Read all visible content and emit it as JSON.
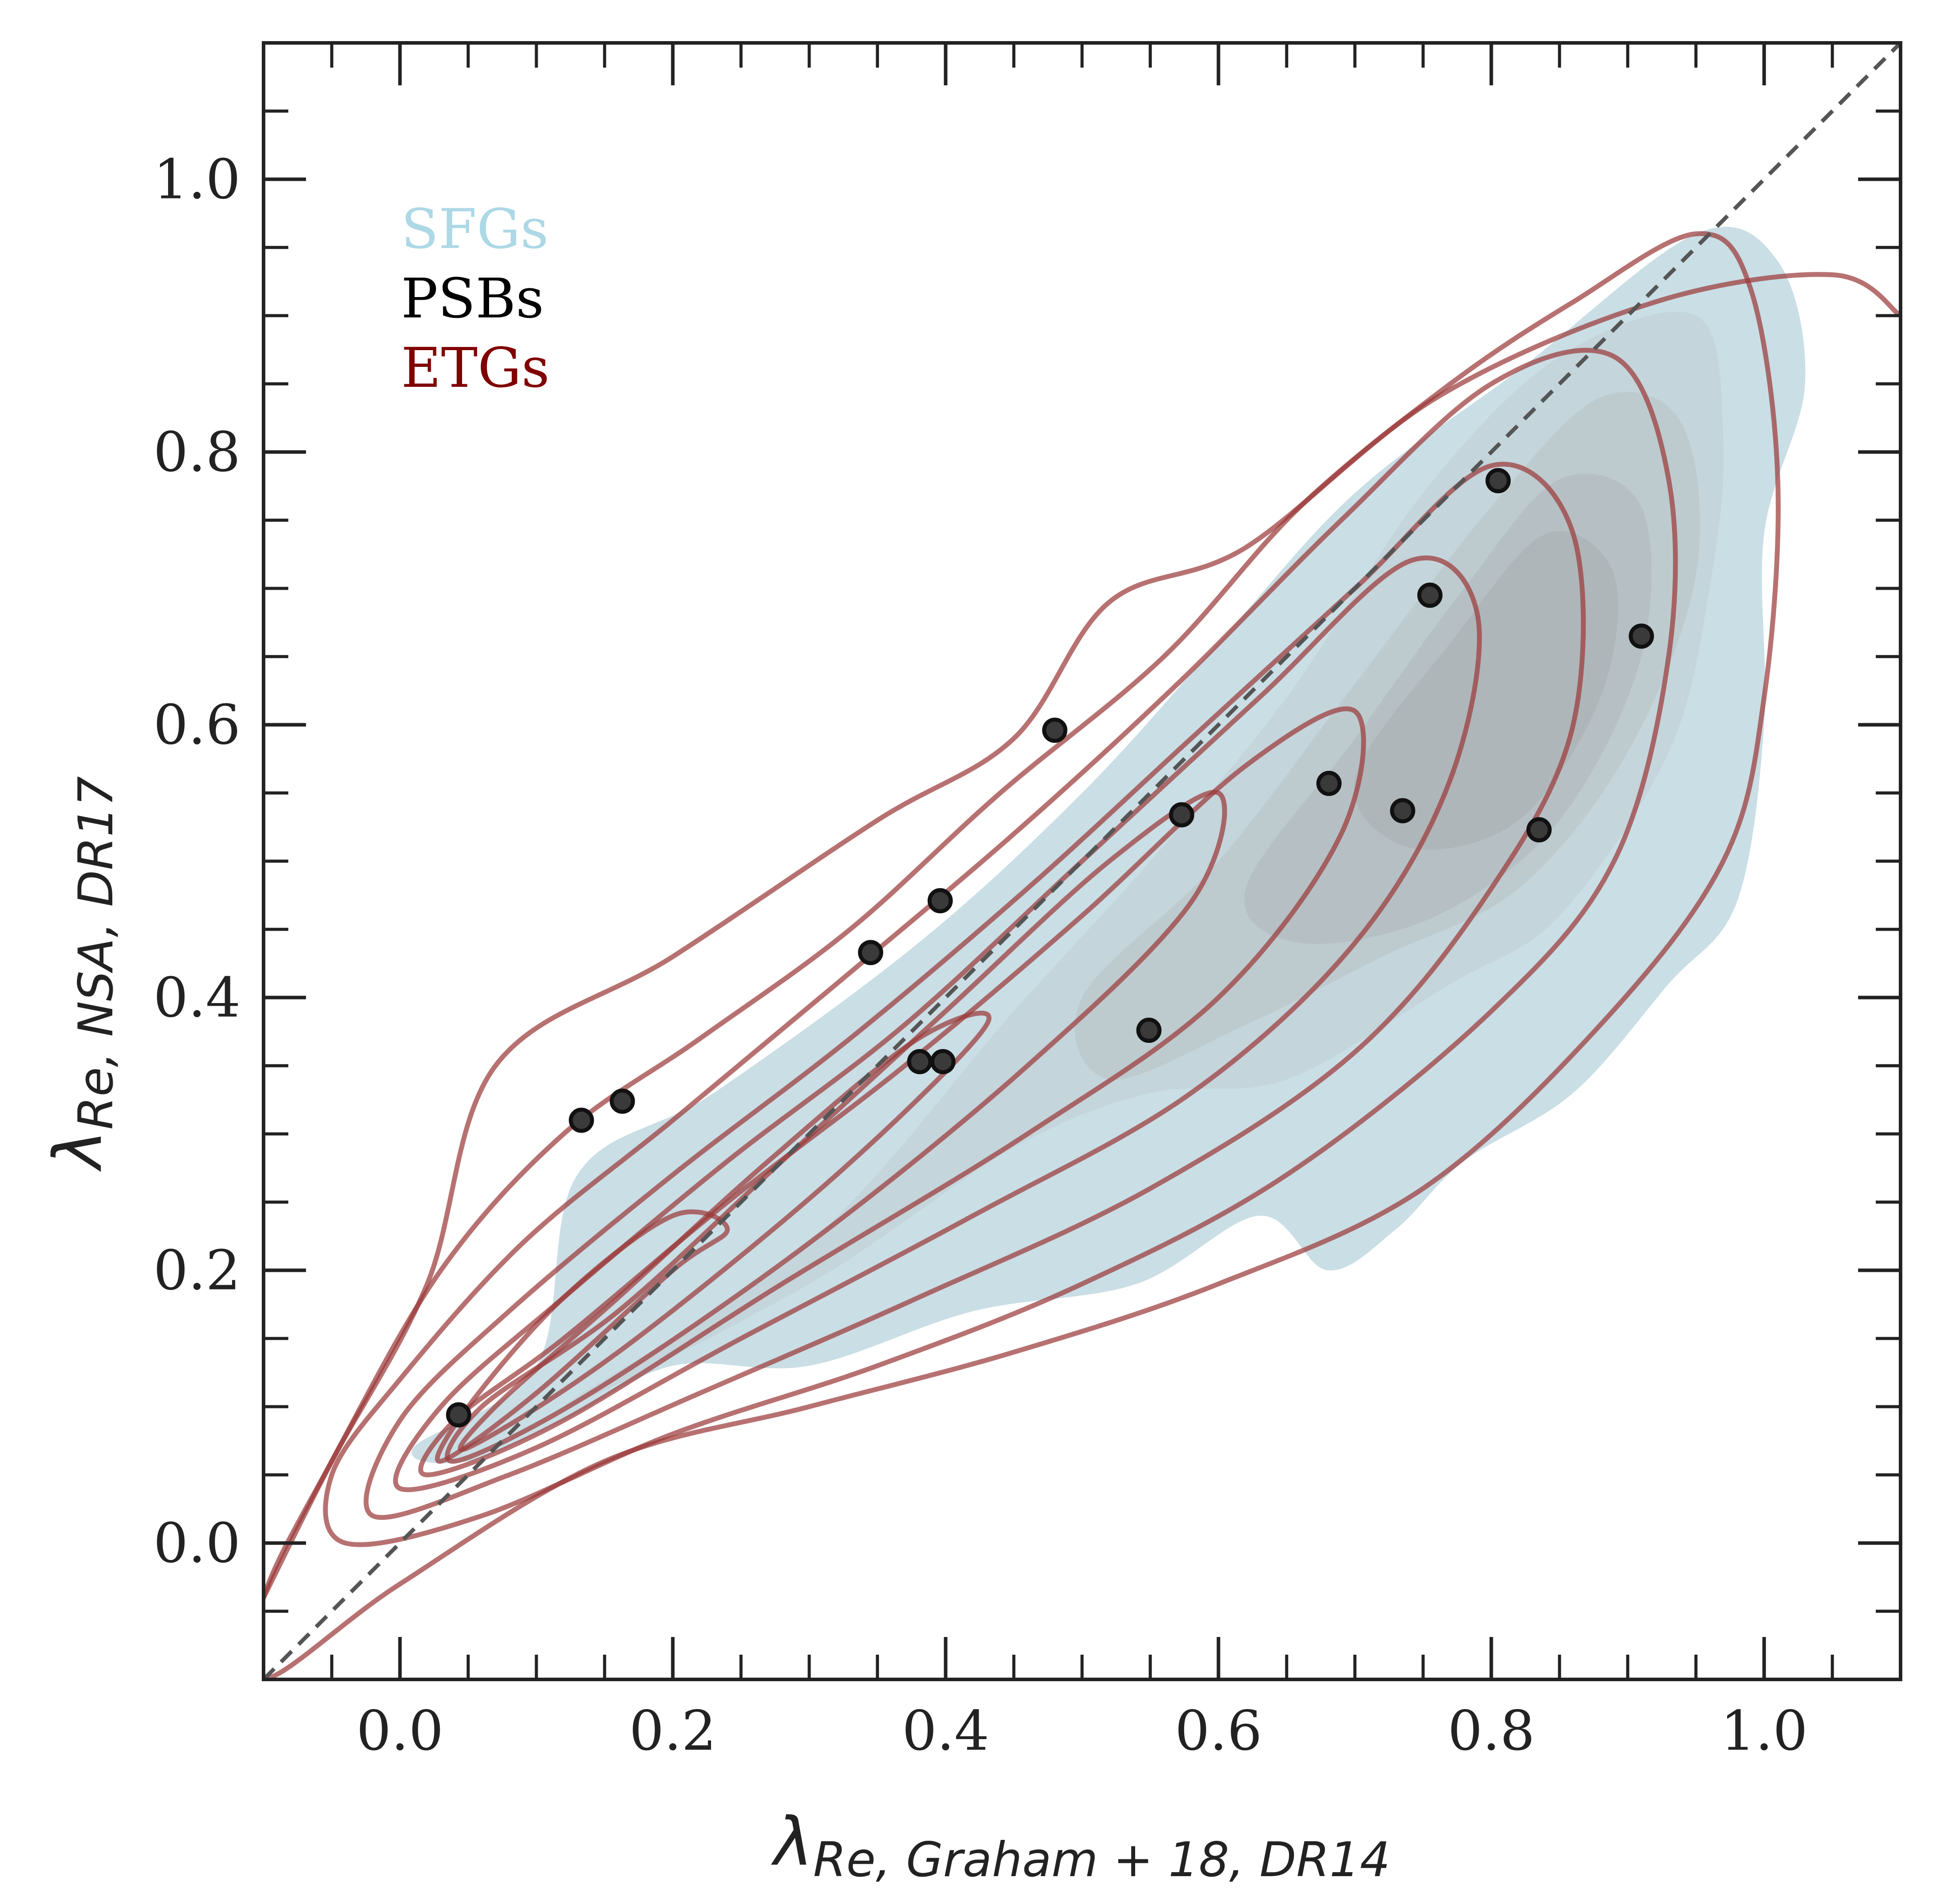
{
  "chart_data": {
    "type": "scatter",
    "title": "",
    "xlabel": "λRe, Graham + 18, DR14",
    "ylabel": "λRe, NSA, DR17",
    "xlabel_main": "λ",
    "xlabel_sub": "Re, Graham + 18, DR14",
    "ylabel_main": "λ",
    "ylabel_sub": "Re, NSA, DR17",
    "xlim": [
      -0.1,
      1.1
    ],
    "ylim": [
      -0.1,
      1.1
    ],
    "x_ticks": [
      0.0,
      0.2,
      0.4,
      0.6,
      0.8,
      1.0
    ],
    "y_ticks": [
      0.0,
      0.2,
      0.4,
      0.6,
      0.8,
      1.0
    ],
    "x_tick_labels": [
      "0.0",
      "0.2",
      "0.4",
      "0.6",
      "0.8",
      "1.0"
    ],
    "y_tick_labels": [
      "0.0",
      "0.2",
      "0.4",
      "0.6",
      "0.8",
      "1.0"
    ],
    "grid": false,
    "legend_position": "top-left",
    "legend": [
      {
        "name": "SFGs",
        "color": "#add8e6"
      },
      {
        "name": "PSBs",
        "color": "#000000"
      },
      {
        "name": "ETGs",
        "color": "#800000"
      }
    ],
    "reference_line": {
      "type": "one-to-one",
      "x": [
        -0.1,
        1.1
      ],
      "y": [
        -0.1,
        1.1
      ],
      "style": "dashed",
      "color": "#555555"
    },
    "series": [
      {
        "name": "PSBs",
        "kind": "points",
        "color": "#2b2b2b",
        "x": [
          0.043,
          0.133,
          0.163,
          0.345,
          0.381,
          0.398,
          0.396,
          0.48,
          0.549,
          0.573,
          0.681,
          0.735,
          0.755,
          0.805,
          0.835,
          0.91
        ],
        "y": [
          0.094,
          0.31,
          0.324,
          0.433,
          0.353,
          0.353,
          0.471,
          0.596,
          0.376,
          0.534,
          0.557,
          0.537,
          0.695,
          0.779,
          0.523,
          0.665
        ]
      },
      {
        "name": "SFGs",
        "kind": "filled density contours",
        "color": "#add8e6",
        "levels": [
          [
            [
              0.01,
              0.07
            ],
            [
              0.1,
              0.13
            ],
            [
              0.13,
              0.27
            ],
            [
              0.23,
              0.33
            ],
            [
              0.38,
              0.44
            ],
            [
              0.5,
              0.55
            ],
            [
              0.6,
              0.66
            ],
            [
              0.7,
              0.77
            ],
            [
              0.82,
              0.86
            ],
            [
              0.95,
              0.96
            ],
            [
              1.01,
              0.94
            ],
            [
              1.03,
              0.85
            ],
            [
              1.0,
              0.74
            ],
            [
              1.0,
              0.6
            ],
            [
              0.98,
              0.47
            ],
            [
              0.93,
              0.41
            ],
            [
              0.86,
              0.33
            ],
            [
              0.78,
              0.28
            ],
            [
              0.73,
              0.23
            ],
            [
              0.68,
              0.2
            ],
            [
              0.63,
              0.24
            ],
            [
              0.54,
              0.19
            ],
            [
              0.42,
              0.17
            ],
            [
              0.3,
              0.13
            ],
            [
              0.2,
              0.13
            ],
            [
              0.12,
              0.09
            ],
            [
              0.05,
              0.06
            ]
          ],
          [
            [
              0.12,
              0.1
            ],
            [
              0.3,
              0.22
            ],
            [
              0.45,
              0.39
            ],
            [
              0.55,
              0.5
            ],
            [
              0.65,
              0.62
            ],
            [
              0.75,
              0.77
            ],
            [
              0.85,
              0.87
            ],
            [
              0.95,
              0.9
            ],
            [
              0.97,
              0.81
            ],
            [
              0.96,
              0.7
            ],
            [
              0.93,
              0.58
            ],
            [
              0.85,
              0.46
            ],
            [
              0.77,
              0.41
            ],
            [
              0.65,
              0.34
            ],
            [
              0.55,
              0.33
            ],
            [
              0.45,
              0.29
            ],
            [
              0.3,
              0.19
            ]
          ],
          [
            [
              0.5,
              0.4
            ],
            [
              0.6,
              0.5
            ],
            [
              0.7,
              0.63
            ],
            [
              0.8,
              0.76
            ],
            [
              0.88,
              0.84
            ],
            [
              0.94,
              0.82
            ],
            [
              0.95,
              0.71
            ],
            [
              0.9,
              0.58
            ],
            [
              0.82,
              0.48
            ],
            [
              0.72,
              0.43
            ],
            [
              0.62,
              0.38
            ],
            [
              0.52,
              0.34
            ]
          ],
          [
            [
              0.62,
              0.48
            ],
            [
              0.7,
              0.59
            ],
            [
              0.78,
              0.7
            ],
            [
              0.85,
              0.78
            ],
            [
              0.91,
              0.76
            ],
            [
              0.91,
              0.65
            ],
            [
              0.85,
              0.53
            ],
            [
              0.76,
              0.46
            ],
            [
              0.66,
              0.44
            ]
          ],
          [
            [
              0.7,
              0.56
            ],
            [
              0.77,
              0.66
            ],
            [
              0.84,
              0.74
            ],
            [
              0.89,
              0.71
            ],
            [
              0.88,
              0.62
            ],
            [
              0.82,
              0.53
            ],
            [
              0.74,
              0.51
            ]
          ]
        ]
      },
      {
        "name": "ETGs",
        "kind": "density contour lines",
        "color": "#9b3a3a",
        "levels": [
          [
            [
              -0.1,
              -0.04
            ],
            [
              -0.05,
              0.06
            ],
            [
              0.02,
              0.19
            ],
            [
              0.07,
              0.35
            ],
            [
              0.2,
              0.43
            ],
            [
              0.35,
              0.53
            ],
            [
              0.45,
              0.59
            ],
            [
              0.52,
              0.69
            ],
            [
              0.62,
              0.73
            ],
            [
              0.76,
              0.84
            ],
            [
              0.92,
              0.91
            ],
            [
              1.05,
              0.93
            ],
            [
              1.1,
              0.9
            ]
          ],
          [
            [
              -0.1,
              -0.1
            ],
            [
              0.0,
              -0.03
            ],
            [
              0.15,
              0.06
            ],
            [
              0.3,
              0.1
            ],
            [
              0.45,
              0.14
            ],
            [
              0.6,
              0.19
            ],
            [
              0.75,
              0.26
            ],
            [
              0.88,
              0.38
            ],
            [
              0.97,
              0.5
            ],
            [
              1.0,
              0.62
            ],
            [
              1.01,
              0.78
            ],
            [
              0.99,
              0.92
            ],
            [
              0.95,
              0.96
            ],
            [
              0.86,
              0.91
            ],
            [
              0.77,
              0.85
            ],
            [
              0.66,
              0.76
            ],
            [
              0.56,
              0.65
            ],
            [
              0.44,
              0.55
            ],
            [
              0.33,
              0.45
            ],
            [
              0.22,
              0.37
            ],
            [
              0.12,
              0.3
            ],
            [
              0.03,
              0.2
            ],
            [
              -0.05,
              0.06
            ],
            [
              -0.1,
              -0.04
            ]
          ],
          [
            [
              -0.04,
              0.0
            ],
            [
              0.06,
              0.02
            ],
            [
              0.2,
              0.08
            ],
            [
              0.35,
              0.13
            ],
            [
              0.5,
              0.19
            ],
            [
              0.65,
              0.27
            ],
            [
              0.8,
              0.39
            ],
            [
              0.89,
              0.5
            ],
            [
              0.93,
              0.65
            ],
            [
              0.93,
              0.78
            ],
            [
              0.89,
              0.87
            ],
            [
              0.8,
              0.85
            ],
            [
              0.69,
              0.75
            ],
            [
              0.57,
              0.63
            ],
            [
              0.45,
              0.52
            ],
            [
              0.32,
              0.41
            ],
            [
              0.2,
              0.31
            ],
            [
              0.09,
              0.22
            ],
            [
              0.0,
              0.12
            ],
            [
              -0.05,
              0.05
            ]
          ],
          [
            [
              -0.02,
              0.02
            ],
            [
              0.08,
              0.05
            ],
            [
              0.22,
              0.11
            ],
            [
              0.38,
              0.18
            ],
            [
              0.55,
              0.26
            ],
            [
              0.7,
              0.36
            ],
            [
              0.8,
              0.48
            ],
            [
              0.86,
              0.6
            ],
            [
              0.86,
              0.74
            ],
            [
              0.8,
              0.79
            ],
            [
              0.7,
              0.7
            ],
            [
              0.58,
              0.59
            ],
            [
              0.46,
              0.48
            ],
            [
              0.33,
              0.37
            ],
            [
              0.2,
              0.27
            ],
            [
              0.08,
              0.17
            ],
            [
              0.0,
              0.09
            ]
          ],
          [
            [
              0.0,
              0.04
            ],
            [
              0.1,
              0.07
            ],
            [
              0.25,
              0.15
            ],
            [
              0.42,
              0.24
            ],
            [
              0.58,
              0.33
            ],
            [
              0.7,
              0.44
            ],
            [
              0.77,
              0.56
            ],
            [
              0.79,
              0.68
            ],
            [
              0.74,
              0.72
            ],
            [
              0.63,
              0.62
            ],
            [
              0.5,
              0.5
            ],
            [
              0.37,
              0.38
            ],
            [
              0.24,
              0.28
            ],
            [
              0.12,
              0.18
            ],
            [
              0.03,
              0.1
            ]
          ],
          [
            [
              0.02,
              0.05
            ],
            [
              0.12,
              0.09
            ],
            [
              0.28,
              0.19
            ],
            [
              0.46,
              0.3
            ],
            [
              0.6,
              0.4
            ],
            [
              0.69,
              0.52
            ],
            [
              0.7,
              0.61
            ],
            [
              0.62,
              0.57
            ],
            [
              0.5,
              0.46
            ],
            [
              0.37,
              0.35
            ],
            [
              0.24,
              0.25
            ],
            [
              0.12,
              0.15
            ],
            [
              0.04,
              0.09
            ]
          ],
          [
            [
              0.04,
              0.06
            ],
            [
              0.14,
              0.11
            ],
            [
              0.3,
              0.22
            ],
            [
              0.46,
              0.35
            ],
            [
              0.58,
              0.47
            ],
            [
              0.6,
              0.55
            ],
            [
              0.52,
              0.5
            ],
            [
              0.4,
              0.39
            ],
            [
              0.28,
              0.28
            ],
            [
              0.16,
              0.17
            ],
            [
              0.06,
              0.1
            ]
          ],
          [
            [
              0.05,
              0.07
            ],
            [
              0.16,
              0.14
            ],
            [
              0.32,
              0.27
            ],
            [
              0.43,
              0.38
            ],
            [
              0.38,
              0.37
            ],
            [
              0.27,
              0.28
            ],
            [
              0.16,
              0.18
            ],
            [
              0.07,
              0.1
            ]
          ],
          [
            [
              0.03,
              0.06
            ],
            [
              0.1,
              0.11
            ],
            [
              0.2,
              0.2
            ],
            [
              0.24,
              0.23
            ],
            [
              0.2,
              0.24
            ],
            [
              0.12,
              0.18
            ],
            [
              0.05,
              0.1
            ]
          ]
        ]
      }
    ]
  }
}
